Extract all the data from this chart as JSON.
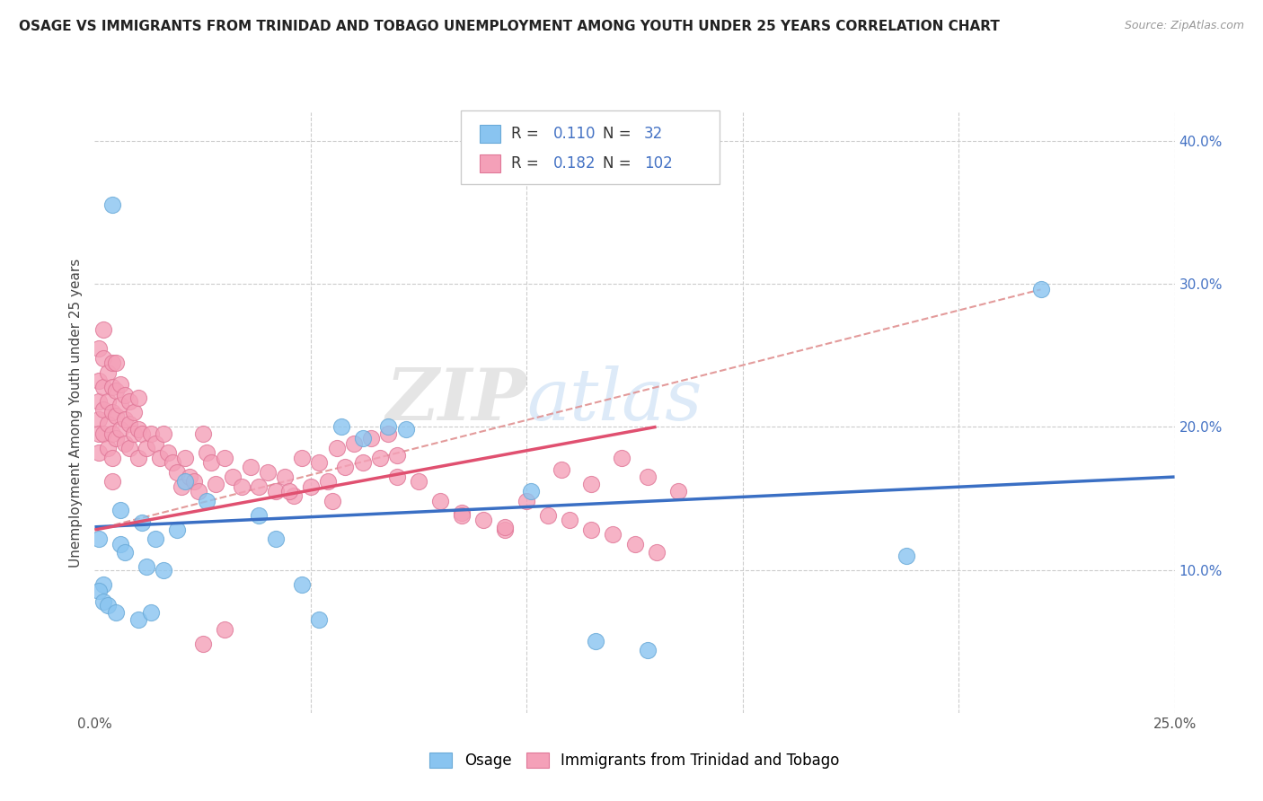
{
  "title": "OSAGE VS IMMIGRANTS FROM TRINIDAD AND TOBAGO UNEMPLOYMENT AMONG YOUTH UNDER 25 YEARS CORRELATION CHART",
  "source": "Source: ZipAtlas.com",
  "ylabel": "Unemployment Among Youth under 25 years",
  "xmin": 0.0,
  "xmax": 0.25,
  "ymin": 0.0,
  "ymax": 0.42,
  "osage_color": "#89c4f0",
  "osage_edge_color": "#6aaad8",
  "trinidad_color": "#f4a0b8",
  "trinidad_edge_color": "#e07898",
  "trend_osage_color": "#3a6fc4",
  "trend_trinidad_color": "#e05070",
  "trend_dashed_color": "#e09090",
  "legend_labels": [
    "Osage",
    "Immigrants from Trinidad and Tobago"
  ],
  "watermark_zip": "ZIP",
  "watermark_atlas": "atlas",
  "background_color": "#ffffff",
  "grid_color": "#cccccc",
  "osage_x": [
    0.004,
    0.001,
    0.002,
    0.001,
    0.002,
    0.003,
    0.006,
    0.006,
    0.007,
    0.005,
    0.011,
    0.012,
    0.01,
    0.014,
    0.016,
    0.013,
    0.021,
    0.019,
    0.026,
    0.038,
    0.042,
    0.048,
    0.052,
    0.057,
    0.062,
    0.068,
    0.072,
    0.101,
    0.116,
    0.128,
    0.188,
    0.219
  ],
  "osage_y": [
    0.355,
    0.122,
    0.09,
    0.085,
    0.078,
    0.075,
    0.142,
    0.118,
    0.112,
    0.07,
    0.133,
    0.102,
    0.065,
    0.122,
    0.1,
    0.07,
    0.162,
    0.128,
    0.148,
    0.138,
    0.122,
    0.09,
    0.065,
    0.2,
    0.192,
    0.2,
    0.198,
    0.155,
    0.05,
    0.044,
    0.11,
    0.296
  ],
  "trinidad_x": [
    0.001,
    0.001,
    0.001,
    0.001,
    0.001,
    0.001,
    0.002,
    0.002,
    0.002,
    0.002,
    0.002,
    0.003,
    0.003,
    0.003,
    0.003,
    0.004,
    0.004,
    0.004,
    0.004,
    0.004,
    0.004,
    0.005,
    0.005,
    0.005,
    0.005,
    0.006,
    0.006,
    0.006,
    0.007,
    0.007,
    0.007,
    0.008,
    0.008,
    0.008,
    0.009,
    0.009,
    0.01,
    0.01,
    0.01,
    0.011,
    0.012,
    0.013,
    0.014,
    0.015,
    0.016,
    0.017,
    0.018,
    0.019,
    0.02,
    0.021,
    0.022,
    0.023,
    0.024,
    0.025,
    0.026,
    0.027,
    0.028,
    0.03,
    0.032,
    0.034,
    0.036,
    0.038,
    0.04,
    0.042,
    0.044,
    0.046,
    0.048,
    0.05,
    0.052,
    0.054,
    0.056,
    0.058,
    0.06,
    0.062,
    0.064,
    0.066,
    0.068,
    0.07,
    0.075,
    0.08,
    0.085,
    0.09,
    0.095,
    0.1,
    0.105,
    0.11,
    0.115,
    0.12,
    0.125,
    0.13,
    0.045,
    0.055,
    0.07,
    0.085,
    0.095,
    0.108,
    0.115,
    0.122,
    0.128,
    0.135,
    0.03,
    0.025
  ],
  "trinidad_y": [
    0.255,
    0.232,
    0.218,
    0.205,
    0.195,
    0.182,
    0.268,
    0.248,
    0.228,
    0.212,
    0.195,
    0.238,
    0.218,
    0.202,
    0.185,
    0.245,
    0.228,
    0.21,
    0.195,
    0.178,
    0.162,
    0.245,
    0.225,
    0.208,
    0.192,
    0.23,
    0.215,
    0.198,
    0.222,
    0.205,
    0.188,
    0.218,
    0.202,
    0.185,
    0.21,
    0.195,
    0.22,
    0.198,
    0.178,
    0.195,
    0.185,
    0.195,
    0.188,
    0.178,
    0.195,
    0.182,
    0.175,
    0.168,
    0.158,
    0.178,
    0.165,
    0.162,
    0.155,
    0.195,
    0.182,
    0.175,
    0.16,
    0.178,
    0.165,
    0.158,
    0.172,
    0.158,
    0.168,
    0.155,
    0.165,
    0.152,
    0.178,
    0.158,
    0.175,
    0.162,
    0.185,
    0.172,
    0.188,
    0.175,
    0.192,
    0.178,
    0.195,
    0.18,
    0.162,
    0.148,
    0.14,
    0.135,
    0.128,
    0.148,
    0.138,
    0.135,
    0.128,
    0.125,
    0.118,
    0.112,
    0.155,
    0.148,
    0.165,
    0.138,
    0.13,
    0.17,
    0.16,
    0.178,
    0.165,
    0.155,
    0.058,
    0.048
  ]
}
